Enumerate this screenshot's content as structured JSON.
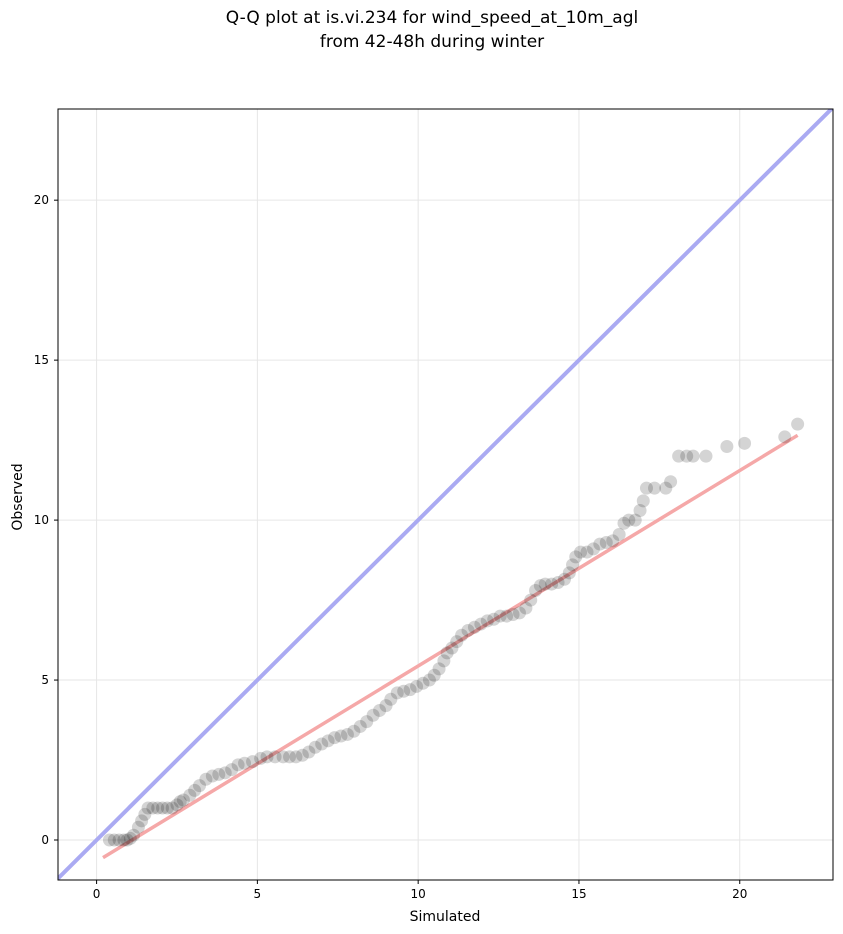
{
  "chart_data": {
    "type": "scatter",
    "title": "Q-Q plot at is.vi.234 for wind_speed_at_10m_agl\nfrom 42-48h during winter",
    "title_lines": [
      "Q-Q plot at is.vi.234 for wind_speed_at_10m_agl",
      "from 42-48h during winter"
    ],
    "xlabel": "Simulated",
    "ylabel": "Observed",
    "xlim": [
      -1.2,
      22.9
    ],
    "ylim": [
      -1.25,
      22.85
    ],
    "xticks": [
      0,
      5,
      10,
      15,
      20
    ],
    "yticks": [
      0,
      5,
      10,
      15,
      20
    ],
    "grid": true,
    "identity_line": {
      "color": "#aaaaf2",
      "from": [
        -1.2,
        -1.2
      ],
      "to": [
        22.9,
        22.9
      ]
    },
    "fit_line": {
      "color": "#f5a8a8",
      "from": [
        0.2,
        -0.55
      ],
      "to": [
        21.8,
        12.65
      ]
    },
    "point_color": "#000000",
    "points": [
      [
        0.4,
        0.0
      ],
      [
        0.55,
        0.0
      ],
      [
        0.7,
        0.0
      ],
      [
        0.85,
        0.0
      ],
      [
        0.95,
        0.0
      ],
      [
        1.05,
        0.05
      ],
      [
        1.15,
        0.15
      ],
      [
        1.3,
        0.4
      ],
      [
        1.4,
        0.6
      ],
      [
        1.5,
        0.8
      ],
      [
        1.6,
        1.0
      ],
      [
        1.75,
        1.0
      ],
      [
        1.9,
        1.0
      ],
      [
        2.05,
        1.0
      ],
      [
        2.2,
        1.0
      ],
      [
        2.35,
        1.0
      ],
      [
        2.5,
        1.1
      ],
      [
        2.6,
        1.2
      ],
      [
        2.7,
        1.25
      ],
      [
        2.9,
        1.4
      ],
      [
        3.05,
        1.55
      ],
      [
        3.2,
        1.7
      ],
      [
        3.4,
        1.9
      ],
      [
        3.6,
        2.0
      ],
      [
        3.8,
        2.05
      ],
      [
        4.0,
        2.1
      ],
      [
        4.2,
        2.2
      ],
      [
        4.4,
        2.35
      ],
      [
        4.6,
        2.4
      ],
      [
        4.85,
        2.45
      ],
      [
        5.1,
        2.55
      ],
      [
        5.3,
        2.6
      ],
      [
        5.55,
        2.6
      ],
      [
        5.8,
        2.6
      ],
      [
        6.0,
        2.6
      ],
      [
        6.2,
        2.6
      ],
      [
        6.4,
        2.65
      ],
      [
        6.6,
        2.75
      ],
      [
        6.8,
        2.9
      ],
      [
        7.0,
        3.0
      ],
      [
        7.2,
        3.1
      ],
      [
        7.4,
        3.2
      ],
      [
        7.6,
        3.25
      ],
      [
        7.8,
        3.3
      ],
      [
        8.0,
        3.4
      ],
      [
        8.2,
        3.55
      ],
      [
        8.4,
        3.7
      ],
      [
        8.6,
        3.9
      ],
      [
        8.8,
        4.05
      ],
      [
        9.0,
        4.2
      ],
      [
        9.15,
        4.4
      ],
      [
        9.35,
        4.6
      ],
      [
        9.55,
        4.65
      ],
      [
        9.75,
        4.7
      ],
      [
        9.95,
        4.8
      ],
      [
        10.15,
        4.9
      ],
      [
        10.35,
        5.0
      ],
      [
        10.5,
        5.15
      ],
      [
        10.65,
        5.35
      ],
      [
        10.8,
        5.6
      ],
      [
        10.9,
        5.85
      ],
      [
        11.05,
        6.0
      ],
      [
        11.2,
        6.2
      ],
      [
        11.35,
        6.4
      ],
      [
        11.55,
        6.55
      ],
      [
        11.75,
        6.65
      ],
      [
        11.95,
        6.75
      ],
      [
        12.15,
        6.85
      ],
      [
        12.35,
        6.9
      ],
      [
        12.55,
        7.0
      ],
      [
        12.75,
        7.0
      ],
      [
        12.95,
        7.05
      ],
      [
        13.15,
        7.1
      ],
      [
        13.35,
        7.25
      ],
      [
        13.5,
        7.5
      ],
      [
        13.65,
        7.8
      ],
      [
        13.8,
        7.95
      ],
      [
        13.95,
        8.0
      ],
      [
        14.15,
        8.0
      ],
      [
        14.35,
        8.05
      ],
      [
        14.55,
        8.15
      ],
      [
        14.7,
        8.35
      ],
      [
        14.8,
        8.6
      ],
      [
        14.9,
        8.85
      ],
      [
        15.05,
        9.0
      ],
      [
        15.25,
        9.0
      ],
      [
        15.45,
        9.1
      ],
      [
        15.65,
        9.25
      ],
      [
        15.85,
        9.3
      ],
      [
        16.05,
        9.35
      ],
      [
        16.25,
        9.55
      ],
      [
        16.4,
        9.9
      ],
      [
        16.55,
        10.0
      ],
      [
        16.75,
        10.0
      ],
      [
        16.9,
        10.3
      ],
      [
        17.0,
        10.6
      ],
      [
        17.1,
        11.0
      ],
      [
        17.35,
        11.0
      ],
      [
        17.7,
        11.0
      ],
      [
        17.85,
        11.2
      ],
      [
        18.1,
        12.0
      ],
      [
        18.35,
        12.0
      ],
      [
        18.55,
        12.0
      ],
      [
        18.95,
        12.0
      ],
      [
        19.6,
        12.3
      ],
      [
        20.15,
        12.4
      ],
      [
        21.4,
        12.6
      ],
      [
        21.8,
        13.0
      ]
    ]
  }
}
